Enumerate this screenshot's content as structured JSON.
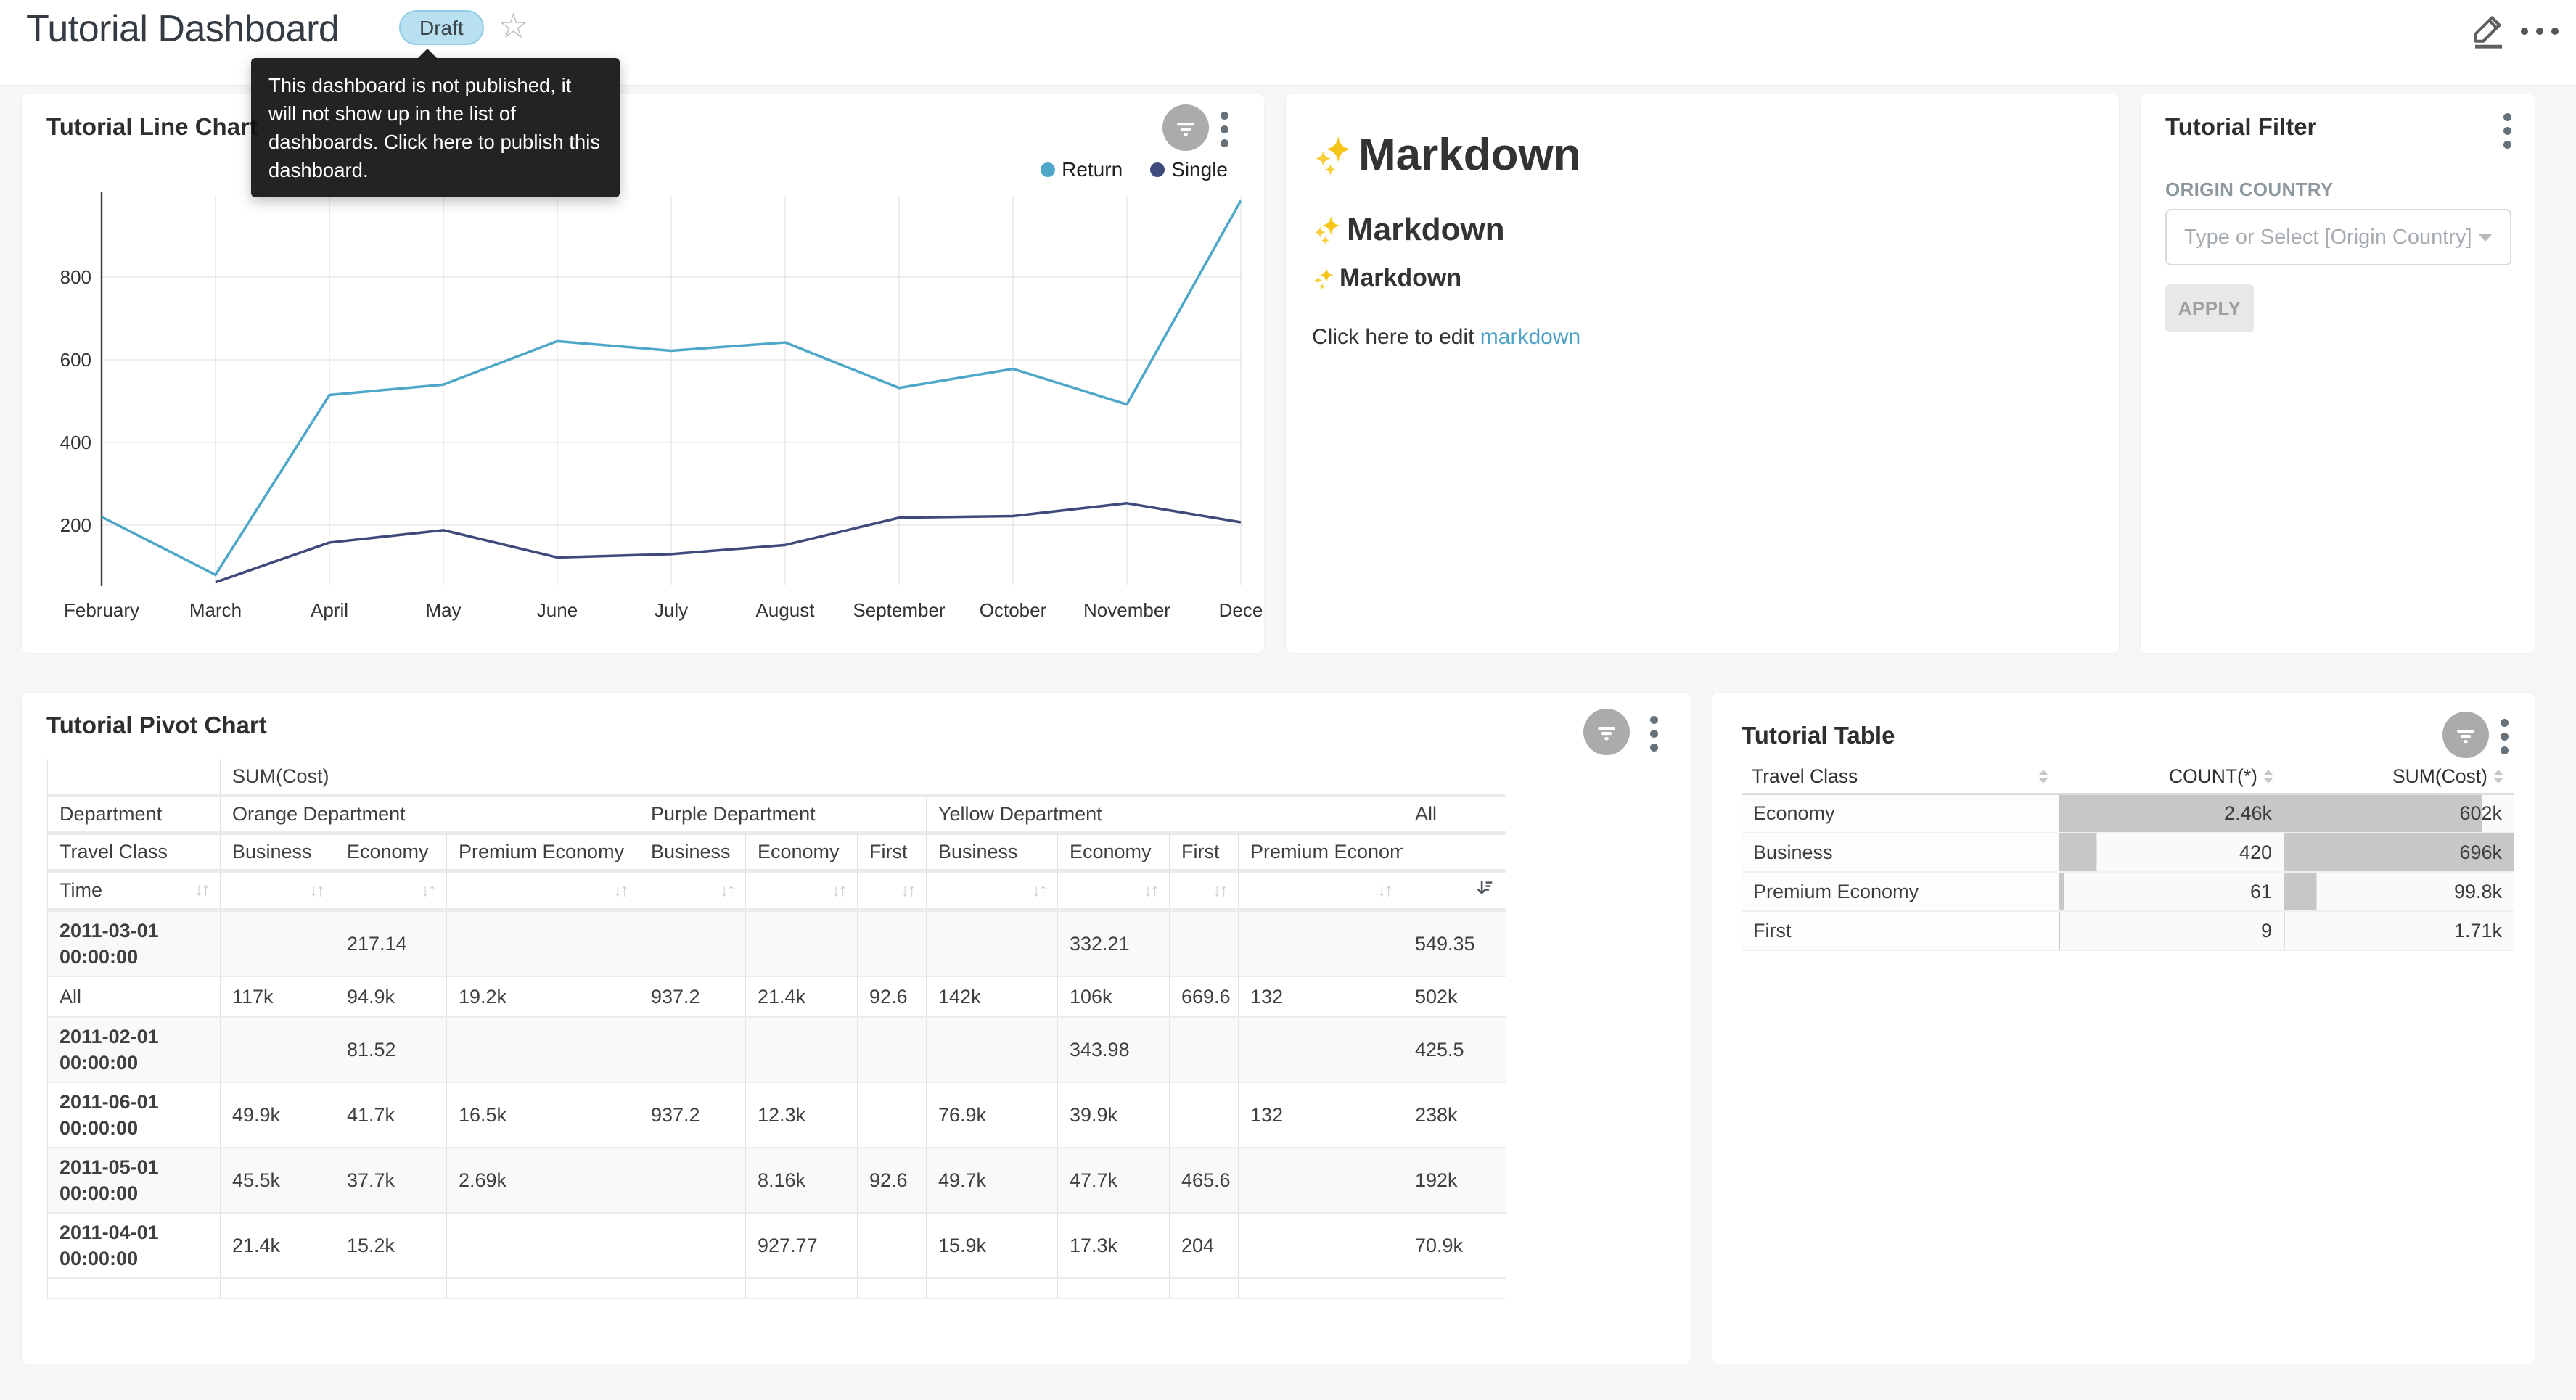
{
  "header": {
    "title": "Tutorial Dashboard",
    "badge_label": "Draft",
    "tooltip_lines": "This dashboard is not published, it will not show up in the list of dashboards. Click here to publish this dashboard."
  },
  "line_chart_panel": {
    "title": "Tutorial Line Chart"
  },
  "chart_data": {
    "type": "line",
    "title": "Tutorial Line Chart",
    "x": [
      "February",
      "March",
      "April",
      "May",
      "June",
      "July",
      "August",
      "September",
      "October",
      "November",
      "December"
    ],
    "x_tick_labels": [
      "February",
      "March",
      "April",
      "May",
      "June",
      "July",
      "August",
      "September",
      "October",
      "November",
      "Dece"
    ],
    "series": [
      {
        "name": "Return",
        "color": "#4EA7C9",
        "values": [
          220,
          80,
          515,
          540,
          645,
          622,
          642,
          532,
          578,
          492,
          985
        ]
      },
      {
        "name": "Single",
        "color": "#3E4A7C",
        "values": [
          null,
          62,
          158,
          188,
          122,
          130,
          152,
          218,
          222,
          253,
          207
        ]
      }
    ],
    "yticks": [
      200,
      400,
      600,
      800
    ],
    "ylim": [
      0,
      1000
    ],
    "grid": true,
    "legend_position": "top-right"
  },
  "markdown_panel": {
    "h1": "Markdown",
    "h2": "Markdown",
    "h3": "Markdown",
    "sparkles_icon": "sparkles",
    "paragraph_prefix": "Click here to edit ",
    "link_text": "markdown"
  },
  "filter_panel": {
    "title": "Tutorial Filter",
    "field_label": "ORIGIN COUNTRY",
    "select_placeholder": "Type or Select [Origin Country]",
    "apply_label": "APPLY"
  },
  "pivot_panel": {
    "title": "Tutorial Pivot Chart",
    "metric_label": "SUM(Cost)",
    "row_header": "Department",
    "col_header": "Travel Class",
    "time_header": "Time",
    "groups": [
      {
        "name": "Orange Department",
        "columns": [
          "Business",
          "Economy",
          "Premium Economy"
        ]
      },
      {
        "name": "Purple Department",
        "columns": [
          "Business",
          "Economy",
          "First"
        ]
      },
      {
        "name": "Yellow Department",
        "columns": [
          "Business",
          "Economy",
          "First",
          "Premium Economy"
        ]
      },
      {
        "name": "All",
        "columns": [
          ""
        ]
      }
    ],
    "rows": [
      {
        "label": "2011-03-01 00:00:00",
        "values": [
          "",
          "217.14",
          "",
          "",
          "",
          "",
          "",
          "332.21",
          "",
          "",
          "549.35"
        ]
      },
      {
        "label": "All",
        "values": [
          "117k",
          "94.9k",
          "19.2k",
          "937.2",
          "21.4k",
          "92.6",
          "142k",
          "106k",
          "669.6",
          "132",
          "502k"
        ]
      },
      {
        "label": "2011-02-01 00:00:00",
        "values": [
          "",
          "81.52",
          "",
          "",
          "",
          "",
          "",
          "343.98",
          "",
          "",
          "425.5"
        ]
      },
      {
        "label": "2011-06-01 00:00:00",
        "values": [
          "49.9k",
          "41.7k",
          "16.5k",
          "937.2",
          "12.3k",
          "",
          "76.9k",
          "39.9k",
          "",
          "132",
          "238k"
        ]
      },
      {
        "label": "2011-05-01 00:00:00",
        "values": [
          "45.5k",
          "37.7k",
          "2.69k",
          "",
          "8.16k",
          "92.6",
          "49.7k",
          "47.7k",
          "465.6",
          "",
          "192k"
        ]
      },
      {
        "label": "2011-04-01 00:00:00",
        "values": [
          "21.4k",
          "15.2k",
          "",
          "",
          "927.77",
          "",
          "15.9k",
          "17.3k",
          "204",
          "",
          "70.9k"
        ]
      }
    ]
  },
  "table_panel": {
    "title": "Tutorial Table",
    "columns": [
      "Travel Class",
      "COUNT(*)",
      "SUM(Cost)"
    ],
    "bar_color": "#C7C7C7",
    "rows": [
      {
        "travel_class": "Economy",
        "count": "2.46k",
        "sum": "602k",
        "count_pct": 100,
        "sum_pct": 86.5
      },
      {
        "travel_class": "Business",
        "count": "420",
        "sum": "696k",
        "count_pct": 17,
        "sum_pct": 100
      },
      {
        "travel_class": "Premium Economy",
        "count": "61",
        "sum": "99.8k",
        "count_pct": 2.5,
        "sum_pct": 14.3
      },
      {
        "travel_class": "First",
        "count": "9",
        "sum": "1.71k",
        "count_pct": 0.6,
        "sum_pct": 0.4
      }
    ]
  }
}
